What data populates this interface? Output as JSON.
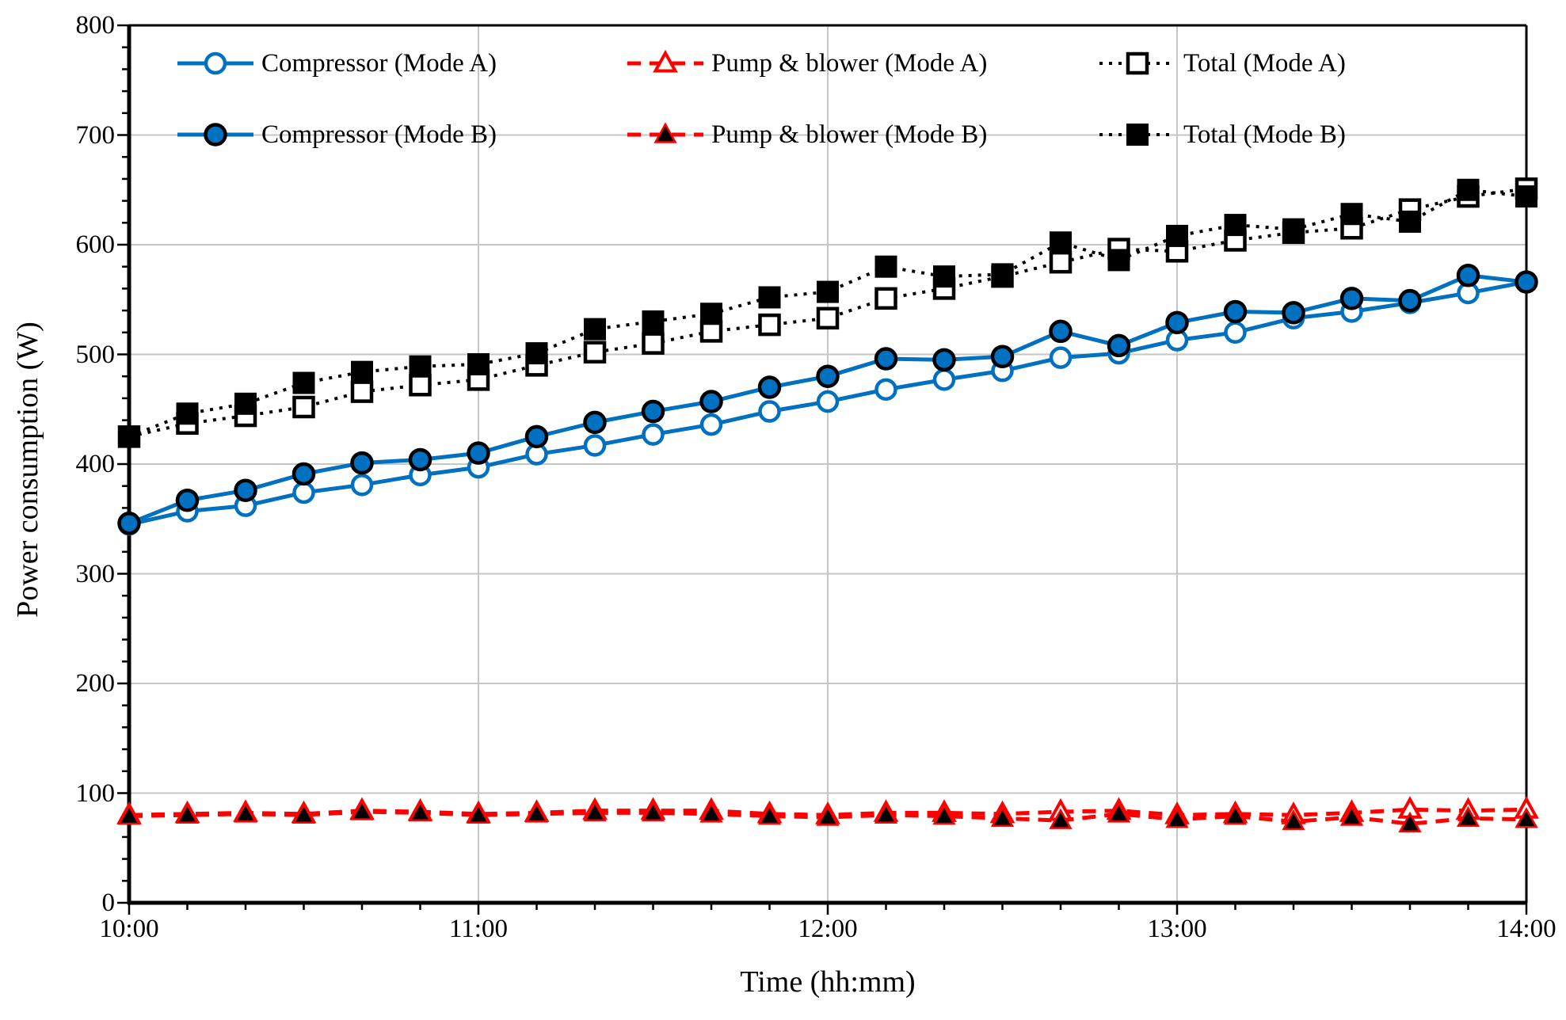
{
  "chart_data": {
    "type": "line",
    "title": "",
    "xlabel": "Time (hh:mm)",
    "ylabel": "Power consumption (W)",
    "ylim": [
      0,
      800
    ],
    "y_major_step": 100,
    "y_minor_step": 20,
    "x_minor_minutes": 10,
    "grid": true,
    "legend_position": "top-inside",
    "x_tick_labels": [
      "10:00",
      "11:00",
      "12:00",
      "13:00",
      "14:00"
    ],
    "y_tick_labels": [
      "0",
      "100",
      "200",
      "300",
      "400",
      "500",
      "600",
      "700",
      "800"
    ],
    "x": [
      "10:00",
      "10:10",
      "10:20",
      "10:30",
      "10:40",
      "10:50",
      "11:00",
      "11:10",
      "11:20",
      "11:30",
      "11:40",
      "11:50",
      "12:00",
      "12:10",
      "12:20",
      "12:30",
      "12:40",
      "12:50",
      "13:00",
      "13:10",
      "13:20",
      "13:30",
      "13:40",
      "13:50",
      "14:00"
    ],
    "series": [
      {
        "key": "total-mode-a",
        "name": "Total (Mode A)",
        "color": "#000000",
        "line": "dotted",
        "marker": "open-square",
        "values": [
          425,
          437,
          444,
          452,
          466,
          472,
          477,
          490,
          502,
          510,
          521,
          527,
          533,
          551,
          560,
          571,
          584,
          596,
          594,
          604,
          611,
          615,
          632,
          644,
          651
        ]
      },
      {
        "key": "total-mode-b",
        "name": "Total (Mode B)",
        "color": "#000000",
        "line": "dotted",
        "marker": "filled-square",
        "values": [
          425,
          446,
          455,
          474,
          484,
          489,
          491,
          501,
          523,
          530,
          537,
          552,
          557,
          580,
          571,
          573,
          602,
          586,
          608,
          618,
          614,
          628,
          621,
          650,
          644
        ]
      },
      {
        "key": "pump-blower-mode-a",
        "name": "Pump & blower (Mode A)",
        "color": "#FF0000",
        "line": "dashed",
        "marker": "open-triangle",
        "values": [
          80,
          81,
          82,
          81,
          84,
          83,
          81,
          82,
          84,
          84,
          84,
          81,
          80,
          82,
          82,
          81,
          83,
          84,
          80,
          81,
          80,
          82,
          85,
          84,
          85
        ]
      },
      {
        "key": "pump-blower-mode-b",
        "name": "Pump & blower (Mode B)",
        "color": "#FF0000",
        "line": "dashed",
        "marker": "filled-triangle",
        "values": [
          79,
          80,
          81,
          80,
          83,
          82,
          80,
          81,
          82,
          82,
          81,
          79,
          78,
          80,
          79,
          77,
          75,
          81,
          76,
          79,
          74,
          78,
          72,
          77,
          76
        ]
      },
      {
        "key": "compressor-mode-a",
        "name": "Compressor (Mode A)",
        "color": "#0070C0",
        "line": "solid",
        "marker": "open-circle",
        "values": [
          345,
          357,
          362,
          374,
          381,
          390,
          397,
          409,
          417,
          427,
          436,
          448,
          457,
          468,
          477,
          485,
          497,
          501,
          513,
          520,
          533,
          539,
          547,
          556,
          566
        ]
      },
      {
        "key": "compressor-mode-b",
        "name": "Compressor (Mode B)",
        "color": "#0070C0",
        "line": "solid",
        "marker": "filled-circle",
        "values": [
          346,
          367,
          376,
          391,
          401,
          404,
          410,
          425,
          438,
          448,
          457,
          470,
          480,
          496,
          495,
          498,
          521,
          508,
          529,
          539,
          538,
          551,
          549,
          572,
          566
        ]
      }
    ],
    "colors": {
      "blue": "#0070C0",
      "red": "#FF0000",
      "black": "#000000",
      "grid": "#C6C6C6"
    }
  },
  "legend": {
    "rows": [
      [
        "Compressor (Mode A)",
        "Pump & blower (Mode A)",
        "Total (Mode A)"
      ],
      [
        "Compressor (Mode B)",
        "Pump & blower (Mode B)",
        "Total (Mode B)"
      ]
    ]
  }
}
